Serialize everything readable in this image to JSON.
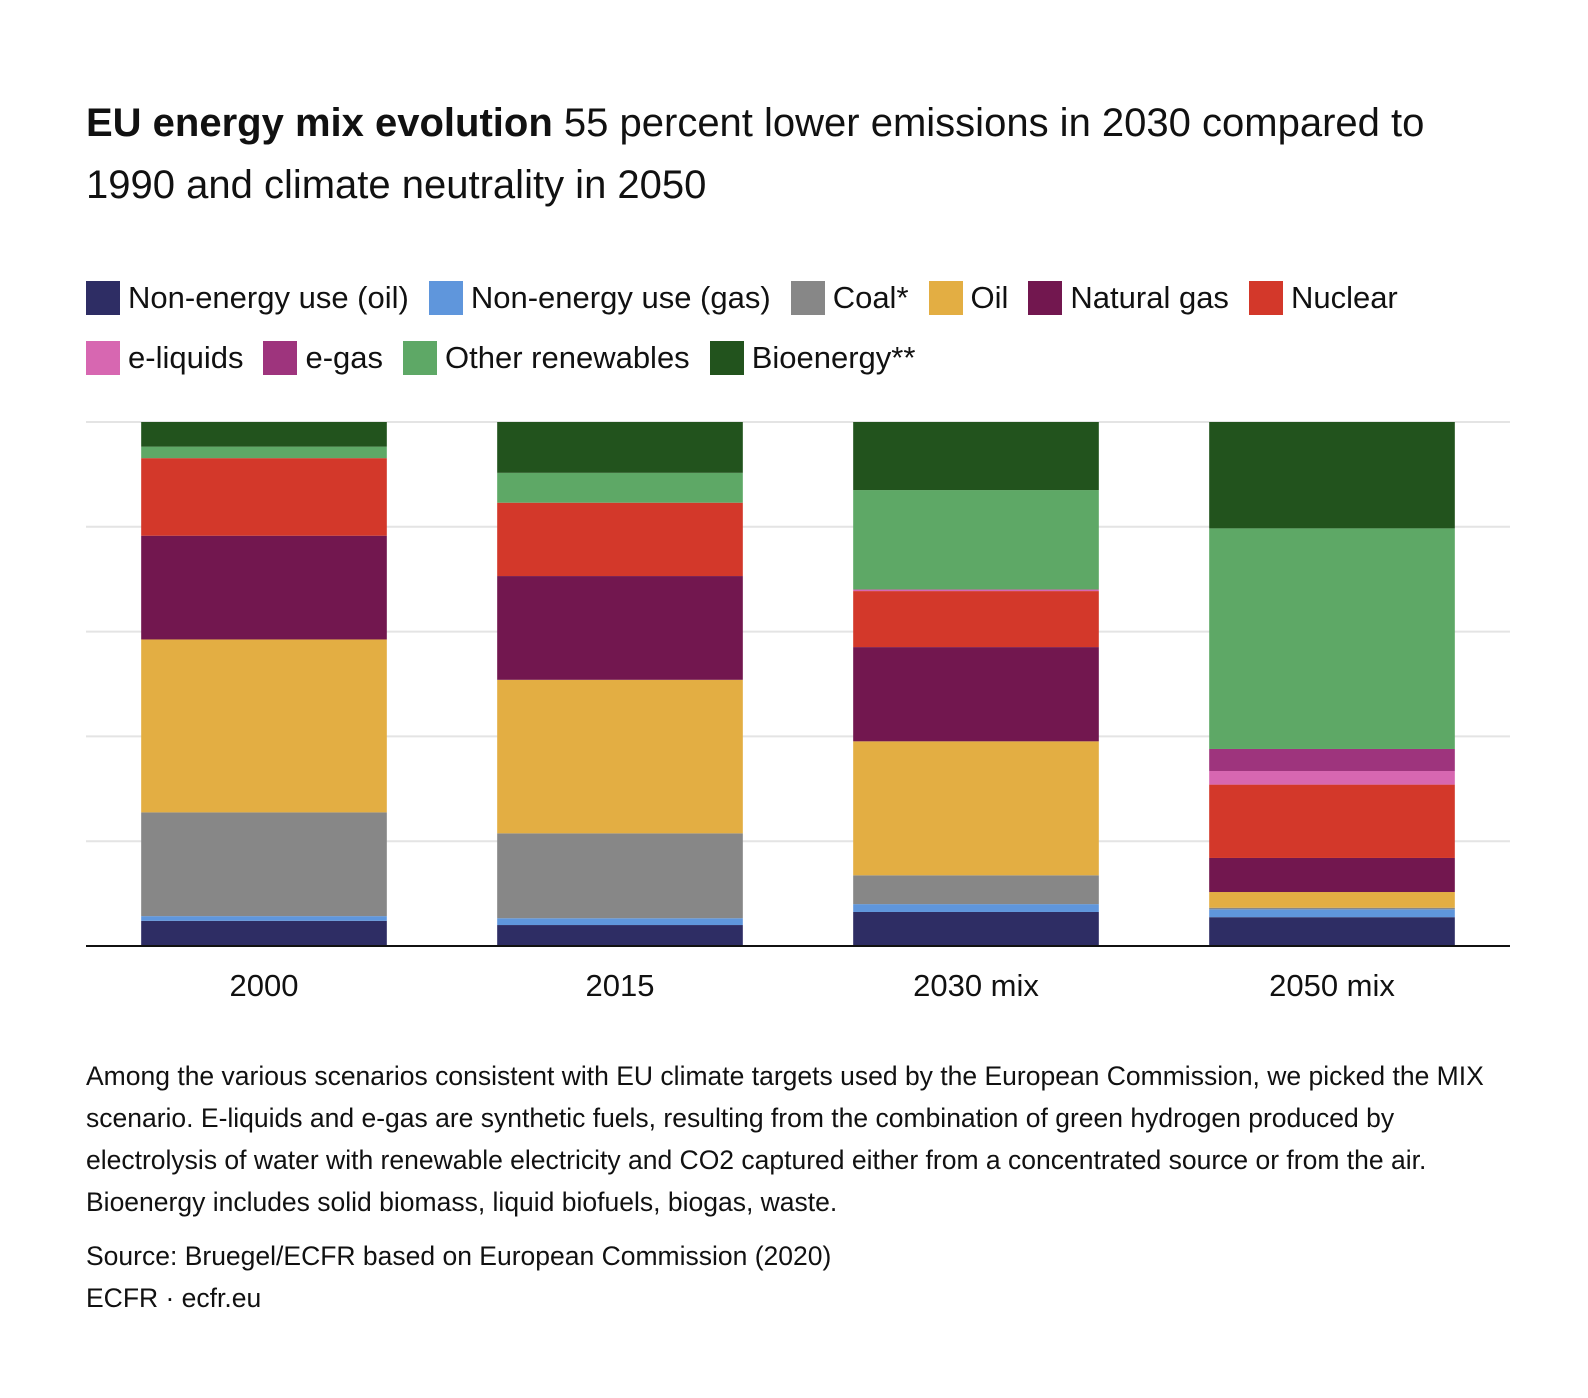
{
  "title_bold": "EU energy mix evolution",
  "title_rest": " 55 percent lower emissions in 2030 compared to 1990 and climate neutrality in 2050",
  "note": "Among the various scenarios consistent with EU climate targets used by the European Commission, we picked the MIX scenario. E-liquids and e-gas are synthetic fuels, resulting from the combination of green hydrogen produced by electrolysis of water with renewable electricity and CO2 captured either from a concentrated source or from the air. Bioenergy includes solid biomass, liquid biofuels, biogas, waste.",
  "source": "Source: Bruegel/ECFR based on European Commission (2020)",
  "credit": "ECFR · ecfr.eu",
  "chart_data": {
    "type": "bar",
    "stacked": true,
    "normalized_to": 100,
    "categories": [
      "2000",
      "2015",
      "2030 mix",
      "2050 mix"
    ],
    "ylim": [
      0,
      100
    ],
    "grid": true,
    "y_tick_labels": false,
    "legend_position": "top",
    "series": [
      {
        "name": "Non-energy use (oil)",
        "color": "#2e2d64",
        "values": [
          4.8,
          4.0,
          6.5,
          5.5
        ]
      },
      {
        "name": "Non-energy use (gas)",
        "color": "#5f96dc",
        "values": [
          0.9,
          1.3,
          1.5,
          1.5
        ]
      },
      {
        "name": "Coal*",
        "color": "#878787",
        "values": [
          19.8,
          16.2,
          5.5,
          0.3
        ]
      },
      {
        "name": "Oil",
        "color": "#e3ae43",
        "values": [
          33.0,
          29.3,
          25.6,
          3.0
        ]
      },
      {
        "name": "Natural gas",
        "color": "#72174f",
        "values": [
          19.8,
          19.8,
          18.0,
          6.5
        ]
      },
      {
        "name": "Nuclear",
        "color": "#d3382a",
        "values": [
          14.8,
          14.0,
          10.7,
          14.0
        ]
      },
      {
        "name": "e-liquids",
        "color": "#d767b1",
        "values": [
          0,
          0,
          0.3,
          2.6
        ]
      },
      {
        "name": "e-gas",
        "color": "#9e347d",
        "values": [
          0,
          0,
          0,
          4.2
        ]
      },
      {
        "name": "Other renewables",
        "color": "#5ea866",
        "values": [
          2.2,
          5.7,
          19.0,
          42.1
        ]
      },
      {
        "name": "Bioenergy**",
        "color": "#22531d",
        "values": [
          4.7,
          9.7,
          13.0,
          20.3
        ]
      }
    ],
    "legend_rows": [
      [
        0,
        1,
        2,
        3,
        4,
        5
      ],
      [
        6,
        7,
        8,
        9
      ]
    ]
  }
}
